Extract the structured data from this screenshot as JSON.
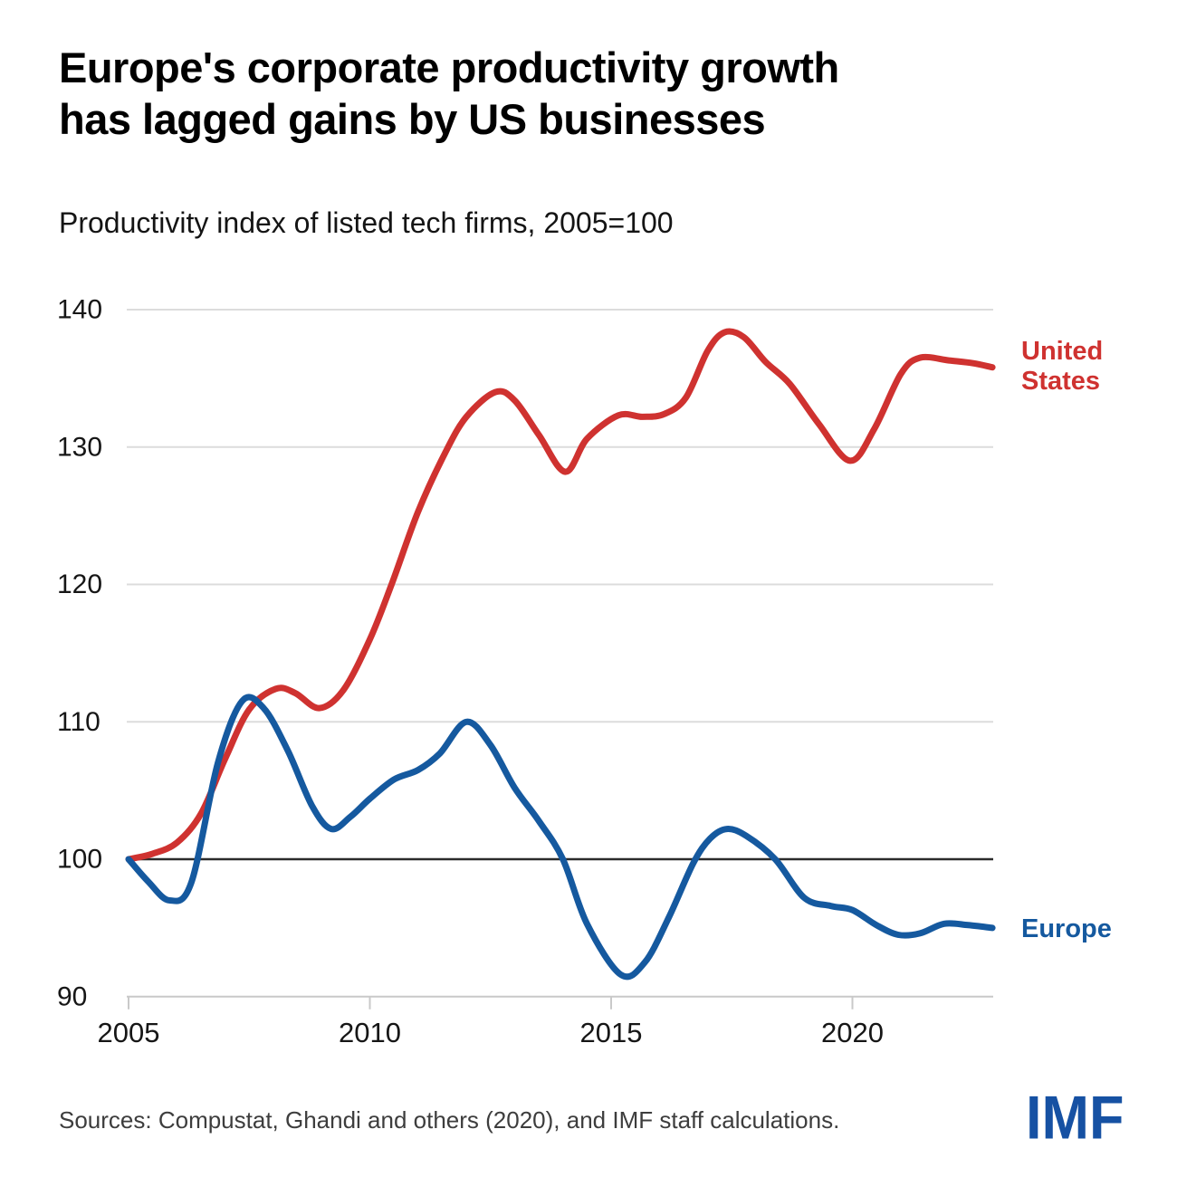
{
  "header": {
    "title": "Europe's corporate productivity growth\nhas lagged gains by US businesses",
    "subtitle": "Productivity index of listed tech firms, 2005=100"
  },
  "chart_data": {
    "type": "line",
    "title": "Europe's corporate productivity growth has lagged gains by US businesses",
    "subtitle": "Productivity index of listed tech firms, 2005=100",
    "xlabel": "",
    "ylabel": "Productivity index (2005=100)",
    "x_range": [
      2005,
      2023
    ],
    "ylim": [
      90,
      140
    ],
    "grid": "horizontal",
    "baseline_value": 100,
    "legend_position": "right-end-labels",
    "x_ticks": [
      2005,
      2010,
      2015,
      2020
    ],
    "x_tick_labels": [
      "2005",
      "2010",
      "2015",
      "2020"
    ],
    "y_ticks": [
      90,
      100,
      110,
      120,
      130,
      140
    ],
    "y_tick_labels": [
      "90",
      "100",
      "110",
      "120",
      "130",
      "140"
    ],
    "series": [
      {
        "name": "United States",
        "label_lines": [
          "United",
          "States"
        ],
        "color": "#cf3230",
        "x": [
          2005,
          2005.5,
          2006,
          2006.5,
          2007,
          2007.5,
          2008.05,
          2008.45,
          2008.95,
          2009.45,
          2010,
          2010.45,
          2011,
          2011.55,
          2012,
          2012.6,
          2013,
          2013.5,
          2014.05,
          2014.5,
          2015.15,
          2015.65,
          2016.1,
          2016.55,
          2017,
          2017.35,
          2017.75,
          2018.2,
          2018.7,
          2019.3,
          2019.95,
          2020.45,
          2021,
          2021.4,
          2022,
          2022.5,
          2022.9
        ],
        "values": [
          100,
          100.4,
          101.2,
          103.3,
          107.3,
          110.9,
          112.4,
          112.1,
          111.0,
          112.3,
          116.0,
          120.0,
          125.3,
          129.5,
          132.2,
          134.0,
          133.4,
          130.9,
          128.2,
          130.6,
          132.3,
          132.2,
          132.4,
          133.6,
          137.0,
          138.35,
          138.0,
          136.2,
          134.6,
          131.7,
          129.0,
          131.3,
          135.3,
          136.5,
          136.3,
          136.1,
          135.8
        ]
      },
      {
        "name": "Europe",
        "label_lines": [
          "Europe"
        ],
        "color": "#15599f",
        "x": [
          2005,
          2005.4,
          2005.85,
          2006.3,
          2006.85,
          2007.35,
          2007.8,
          2008.3,
          2008.8,
          2009.2,
          2009.6,
          2010,
          2010.5,
          2011,
          2011.45,
          2012,
          2012.5,
          2013,
          2013.5,
          2014,
          2014.5,
          2015.2,
          2015.7,
          2016.2,
          2016.7,
          2017.05,
          2017.4,
          2017.8,
          2018.4,
          2019,
          2019.55,
          2020,
          2020.5,
          2020.95,
          2021.4,
          2021.9,
          2022.4,
          2022.9
        ],
        "values": [
          100,
          98.4,
          97.0,
          98.3,
          107.0,
          111.5,
          111.0,
          107.9,
          103.9,
          102.2,
          103.1,
          104.4,
          105.8,
          106.5,
          107.7,
          110.0,
          108.3,
          105.2,
          102.8,
          100.0,
          95.3,
          91.6,
          92.5,
          95.8,
          99.7,
          101.5,
          102.2,
          101.7,
          100.0,
          97.2,
          96.6,
          96.3,
          95.2,
          94.5,
          94.6,
          95.3,
          95.2,
          95.0
        ]
      }
    ],
    "colors": {
      "us_red": "#cf3230",
      "europe_blue": "#15599f",
      "gridline": "#dcdcdc",
      "baseline_black": "#2b2b2b",
      "axis": "#c9c9c9",
      "tick_label": "#161616"
    }
  },
  "footer": {
    "source": "Sources: Compustat, Ghandi and others (2020), and IMF staff calculations.",
    "logo": "IMF",
    "logo_color": "#1651a3"
  }
}
